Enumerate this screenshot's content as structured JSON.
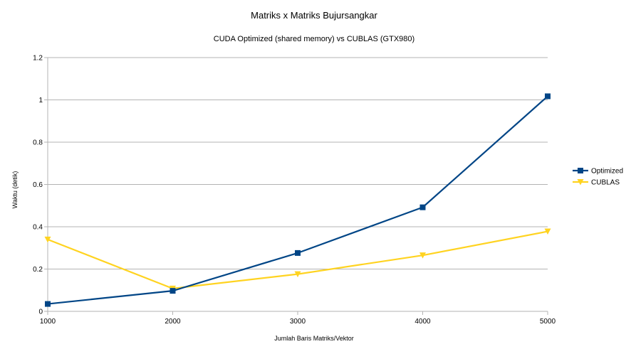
{
  "chart_data": {
    "type": "line",
    "title": "Matriks x Matriks Bujursangkar",
    "subtitle": "CUDA Optimized (shared memory) vs CUBLAS (GTX980)",
    "xlabel": "Jumlah Baris Matriks/Vektor",
    "ylabel": "Waktu (detik)",
    "x": [
      1000,
      2000,
      3000,
      4000,
      5000
    ],
    "xlim": [
      1000,
      5000
    ],
    "ylim": [
      0,
      1.2
    ],
    "yticks": [
      "0",
      "0.2",
      "0.4",
      "0.6",
      "0.8",
      "1",
      "1.2"
    ],
    "xticks": [
      "1000",
      "2000",
      "3000",
      "4000",
      "5000"
    ],
    "grid": true,
    "legend_position": "right",
    "series": [
      {
        "name": "Optimized",
        "color": "#004586",
        "marker": "square",
        "values": [
          0.035,
          0.097,
          0.276,
          0.492,
          1.017
        ]
      },
      {
        "name": "CUBLAS",
        "color": "#ffd320",
        "marker": "triangle-down",
        "values": [
          0.34,
          0.108,
          0.176,
          0.265,
          0.378
        ]
      }
    ]
  }
}
